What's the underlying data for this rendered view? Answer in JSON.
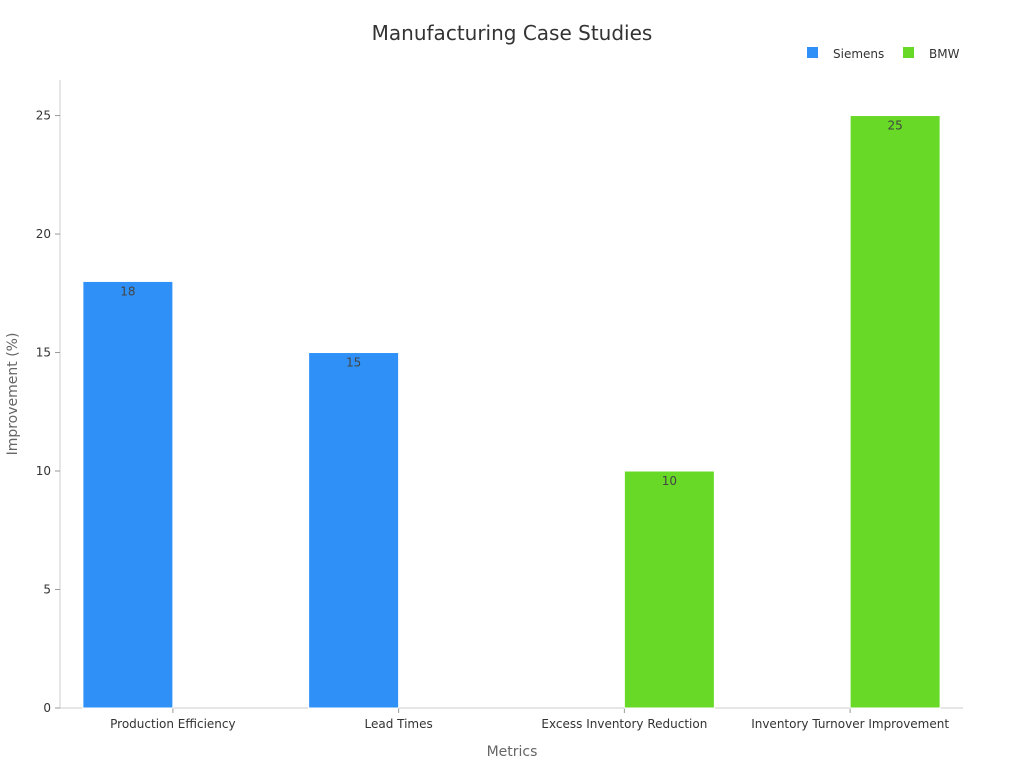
{
  "chart_data": {
    "type": "bar",
    "title": "Manufacturing Case Studies",
    "xlabel": "Metrics",
    "ylabel": "Improvement (%)",
    "categories": [
      "Production Efficiency",
      "Lead Times",
      "Excess Inventory Reduction",
      "Inventory Turnover Improvement"
    ],
    "series": [
      {
        "name": "Siemens",
        "color": "#2f91f8",
        "values": [
          18,
          15,
          null,
          null
        ]
      },
      {
        "name": "BMW",
        "color": "#67d926",
        "values": [
          null,
          null,
          10,
          25
        ]
      }
    ],
    "ylim": [
      0,
      26.5
    ],
    "yticks": [
      0,
      5,
      10,
      15,
      20,
      25
    ],
    "grid": false,
    "legend_position": "top-right",
    "data_labels": true
  }
}
